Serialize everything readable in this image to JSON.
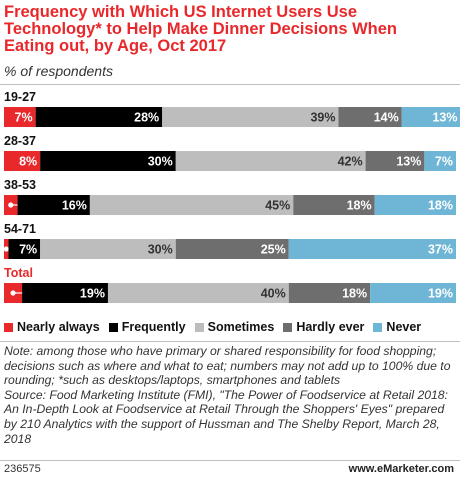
{
  "title": "Frequency with Which US Internet Users Use Technology* to Help Make Dinner Decisions When Eating out, by Age, Oct 2017",
  "subtitle": "% of respondents",
  "note": "Note: among those who have primary or shared responsibility for food shopping; decisions such as where and what to eat; numbers may not add up to 100% due to rounding; *such as desktops/laptops, smartphones and tablets",
  "source": "Source: Food Marketing Institute (FMI), \"The Power of Foodservice at Retail 2018: An In-Depth Look at Foodservice at Retail Through the Shoppers' Eyes\" prepared by 210 Analytics with the support of Hussman and The Shelby Report, March 28, 2018",
  "footer_id": "236575",
  "footer_brand": "www.eMarketer.com",
  "colors": {
    "title": "#e8282b",
    "nearly_always": "#e8282b",
    "frequently": "#000000",
    "sometimes": "#bdbdbd",
    "hardly_ever": "#6e6e6e",
    "never": "#6fb6d6"
  },
  "chart_data": {
    "type": "bar",
    "orientation": "horizontal",
    "stacked": true,
    "categories": [
      "19-27",
      "28-37",
      "38-53",
      "54-71",
      "Total"
    ],
    "series": [
      {
        "name": "Nearly always",
        "values": [
          7,
          8,
          3,
          1,
          4
        ],
        "labels": [
          "7%",
          "8%",
          "3%",
          "1%",
          "4%"
        ]
      },
      {
        "name": "Frequently",
        "values": [
          28,
          30,
          16,
          7,
          19
        ],
        "labels": [
          "28%",
          "30%",
          "16%",
          "7%",
          "19%"
        ]
      },
      {
        "name": "Sometimes",
        "values": [
          39,
          42,
          45,
          30,
          40
        ],
        "labels": [
          "39%",
          "42%",
          "45%",
          "30%",
          "40%"
        ]
      },
      {
        "name": "Hardly ever",
        "values": [
          14,
          13,
          18,
          25,
          18
        ],
        "labels": [
          "14%",
          "13%",
          "18%",
          "25%",
          "18%"
        ]
      },
      {
        "name": "Never",
        "values": [
          13,
          7,
          18,
          37,
          19
        ],
        "labels": [
          "13%",
          "7%",
          "18%",
          "37%",
          "19%"
        ]
      }
    ],
    "xlim": [
      0,
      100
    ],
    "grid": false,
    "legend": "bottom"
  }
}
